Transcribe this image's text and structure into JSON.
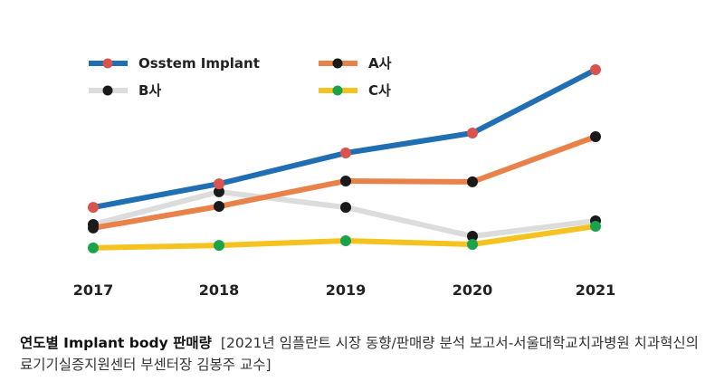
{
  "chart_data": {
    "type": "line",
    "title": "",
    "xlabel": "",
    "ylabel": "",
    "y_axis_visible": false,
    "y_units": "relative (no axis shown)",
    "ylim": [
      0,
      100
    ],
    "grid": false,
    "legend_position": "top-left",
    "categories": [
      "2017",
      "2018",
      "2019",
      "2020",
      "2021"
    ],
    "series": [
      {
        "name": "Osstem Implant",
        "line_color": "#1f6fb2",
        "marker_color": "#d9534f",
        "values": [
          27.7,
          39.5,
          55.0,
          65.0,
          96.8
        ]
      },
      {
        "name": "A사",
        "line_color": "#e8824a",
        "marker_color": "#1a1a1a",
        "values": [
          17.3,
          28.2,
          40.9,
          40.5,
          63.2
        ]
      },
      {
        "name": "B사",
        "line_color": "#dcdcdc",
        "marker_color": "#1a1a1a",
        "values": [
          19.1,
          35.5,
          27.7,
          13.2,
          20.9
        ]
      },
      {
        "name": "C사",
        "line_color": "#f5c320",
        "marker_color": "#1aa34a",
        "values": [
          7.3,
          8.6,
          10.9,
          9.1,
          18.2
        ]
      }
    ]
  },
  "caption": {
    "title": "연도별 Implant body 판매량",
    "source": "[2021년 임플란트 시장 동향/판매량 분석 보고서-서울대학교치과병원 치과혁신의료기기실증지원센터 부센터장 김봉주 교수]"
  }
}
